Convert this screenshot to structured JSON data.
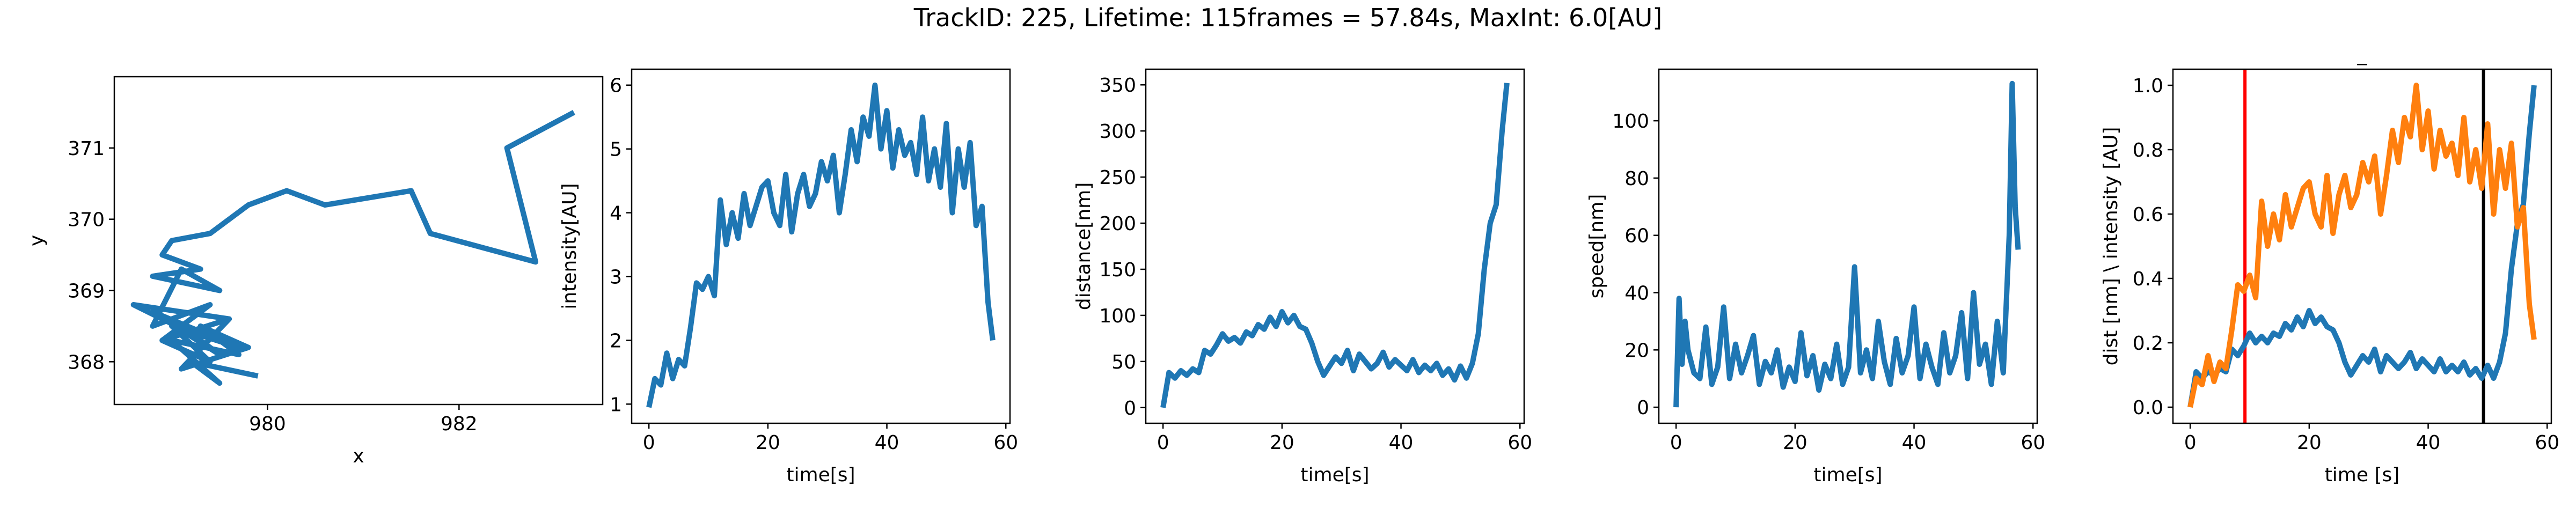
{
  "figure": {
    "suptitle": "TrackID: 225, Lifetime: 115frames = 57.84s, MaxInt: 6.0[AU]"
  },
  "colors": {
    "blue": "#1f77b4",
    "orange": "#ff7f0e",
    "red": "#ff0000",
    "black": "#000000"
  },
  "chart_data": [
    {
      "id": "trajectory",
      "type": "line",
      "title": "",
      "xlabel": "x",
      "ylabel": "y",
      "xlim": [
        978.4,
        983.5
      ],
      "ylim": [
        367.4,
        372.0
      ],
      "xticks": [
        980,
        982
      ],
      "yticks": [
        368,
        369,
        370,
        371
      ],
      "grid": false,
      "series": [
        {
          "color": "blue",
          "x": [
            983.2,
            982.5,
            982.8,
            981.7,
            981.5,
            980.6,
            980.2,
            979.8,
            979.4,
            979.0,
            978.9,
            979.3,
            978.8,
            979.5,
            979.1,
            978.8,
            979.4,
            978.9,
            979.6,
            978.6,
            979.2,
            979.5,
            978.8,
            979.7,
            979.0,
            979.4,
            978.9,
            979.6,
            979.1,
            979.8,
            979.3,
            979.7,
            979.0,
            979.5,
            979.2,
            979.9
          ],
          "y": [
            371.5,
            371.0,
            369.4,
            369.8,
            370.4,
            370.2,
            370.4,
            370.2,
            369.8,
            369.7,
            369.5,
            369.3,
            369.2,
            369.0,
            369.3,
            368.5,
            368.8,
            368.3,
            368.6,
            368.8,
            368.4,
            368.1,
            368.7,
            368.2,
            368.5,
            368.0,
            368.3,
            368.6,
            367.9,
            368.2,
            368.5,
            368.1,
            368.3,
            367.7,
            368.0,
            367.8
          ]
        }
      ]
    },
    {
      "id": "intensity",
      "type": "line",
      "title": "",
      "xlabel": "time[s]",
      "ylabel": "intensity[AU]",
      "xlim": [
        -2.9,
        60.7
      ],
      "ylim": [
        0.7,
        6.25
      ],
      "xticks": [
        0,
        20,
        40,
        60
      ],
      "yticks": [
        1,
        2,
        3,
        4,
        5,
        6
      ],
      "grid": false,
      "series": [
        {
          "color": "blue",
          "x": [
            0,
            1,
            2,
            3,
            4,
            5,
            6,
            7,
            8,
            9,
            10,
            11,
            12,
            13,
            14,
            15,
            16,
            17,
            18,
            19,
            20,
            21,
            22,
            23,
            24,
            25,
            26,
            27,
            28,
            29,
            30,
            31,
            32,
            33,
            34,
            35,
            36,
            37,
            38,
            39,
            40,
            41,
            42,
            43,
            44,
            45,
            46,
            47,
            48,
            49,
            50,
            51,
            52,
            53,
            54,
            55,
            56,
            57,
            57.8
          ],
          "y": [
            0.95,
            1.4,
            1.3,
            1.8,
            1.4,
            1.7,
            1.6,
            2.2,
            2.9,
            2.8,
            3.0,
            2.7,
            4.2,
            3.5,
            4.0,
            3.6,
            4.3,
            3.8,
            4.1,
            4.4,
            4.5,
            4.0,
            3.8,
            4.6,
            3.7,
            4.3,
            4.6,
            4.1,
            4.3,
            4.8,
            4.5,
            4.9,
            4.0,
            4.6,
            5.3,
            4.8,
            5.5,
            5.2,
            6.0,
            5.0,
            5.6,
            4.7,
            5.3,
            4.9,
            5.1,
            4.6,
            5.5,
            4.5,
            5.0,
            4.4,
            5.4,
            4.0,
            5.0,
            4.4,
            5.1,
            3.8,
            4.1,
            2.6,
            2.0
          ]
        }
      ]
    },
    {
      "id": "distance",
      "type": "line",
      "title": "",
      "xlabel": "time[s]",
      "ylabel": "distance[nm]",
      "xlim": [
        -2.9,
        60.7
      ],
      "ylim": [
        -17,
        367
      ],
      "xticks": [
        0,
        20,
        40,
        60
      ],
      "yticks": [
        0,
        50,
        100,
        150,
        200,
        250,
        300,
        350
      ],
      "grid": false,
      "series": [
        {
          "color": "blue",
          "x": [
            0,
            1,
            2,
            3,
            4,
            5,
            6,
            7,
            8,
            9,
            10,
            11,
            12,
            13,
            14,
            15,
            16,
            17,
            18,
            19,
            20,
            21,
            22,
            23,
            24,
            25,
            26,
            27,
            28,
            29,
            30,
            31,
            32,
            33,
            34,
            35,
            36,
            37,
            38,
            39,
            40,
            41,
            42,
            43,
            44,
            45,
            46,
            47,
            48,
            49,
            50,
            51,
            52,
            53,
            54,
            55,
            56,
            57,
            57.8
          ],
          "y": [
            0,
            38,
            32,
            40,
            35,
            42,
            38,
            62,
            58,
            68,
            80,
            72,
            76,
            70,
            82,
            78,
            90,
            85,
            98,
            88,
            104,
            92,
            100,
            88,
            85,
            70,
            50,
            35,
            45,
            55,
            48,
            62,
            40,
            58,
            50,
            42,
            48,
            60,
            44,
            52,
            46,
            40,
            52,
            38,
            46,
            40,
            48,
            35,
            42,
            30,
            45,
            32,
            48,
            80,
            150,
            200,
            220,
            300,
            352
          ]
        }
      ]
    },
    {
      "id": "speed",
      "type": "line",
      "title": "",
      "xlabel": "time[s]",
      "ylabel": "speed[nm]",
      "xlim": [
        -2.9,
        60.7
      ],
      "ylim": [
        -5.6,
        118
      ],
      "xticks": [
        0,
        20,
        40,
        60
      ],
      "yticks": [
        0,
        20,
        40,
        60,
        80,
        100
      ],
      "grid": false,
      "series": [
        {
          "color": "blue",
          "x": [
            0,
            0.5,
            1,
            1.5,
            2,
            3,
            4,
            5,
            6,
            7,
            8,
            9,
            10,
            11,
            12,
            13,
            14,
            15,
            16,
            17,
            18,
            19,
            20,
            21,
            22,
            23,
            24,
            25,
            26,
            27,
            28,
            29,
            30,
            31,
            32,
            33,
            34,
            35,
            36,
            37,
            38,
            39,
            40,
            41,
            42,
            43,
            44,
            45,
            46,
            47,
            48,
            49,
            50,
            51,
            52,
            53,
            54,
            55,
            56,
            56.5,
            57,
            57.5
          ],
          "y": [
            0,
            38,
            15,
            30,
            20,
            12,
            10,
            28,
            8,
            14,
            35,
            10,
            22,
            12,
            18,
            25,
            8,
            16,
            12,
            20,
            7,
            14,
            9,
            26,
            11,
            18,
            6,
            15,
            10,
            22,
            8,
            14,
            49,
            12,
            20,
            10,
            30,
            16,
            8,
            24,
            12,
            18,
            35,
            10,
            22,
            14,
            8,
            26,
            12,
            18,
            33,
            10,
            40,
            15,
            22,
            8,
            30,
            12,
            60,
            113,
            70,
            55
          ]
        }
      ]
    },
    {
      "id": "overlay",
      "type": "line",
      "title": "_",
      "xlabel": "time [s]",
      "ylabel": "dist [nm] \\ intensity [AU]",
      "xlim": [
        -2.9,
        60.7
      ],
      "ylim": [
        -0.05,
        1.05
      ],
      "xticks": [
        0,
        20,
        40,
        60
      ],
      "yticks": [
        0.0,
        0.2,
        0.4,
        0.6,
        0.8,
        1.0
      ],
      "grid": false,
      "vlines": [
        {
          "x": 9.2,
          "color": "red"
        },
        {
          "x": 49.3,
          "color": "black"
        }
      ],
      "series": [
        {
          "color": "blue",
          "x": [
            0,
            1,
            2,
            3,
            4,
            5,
            6,
            7,
            8,
            9,
            10,
            11,
            12,
            13,
            14,
            15,
            16,
            17,
            18,
            19,
            20,
            21,
            22,
            23,
            24,
            25,
            26,
            27,
            28,
            29,
            30,
            31,
            32,
            33,
            34,
            35,
            36,
            37,
            38,
            39,
            40,
            41,
            42,
            43,
            44,
            45,
            46,
            47,
            48,
            49,
            50,
            51,
            52,
            53,
            54,
            55,
            56,
            57,
            57.8
          ],
          "y": [
            0.0,
            0.11,
            0.09,
            0.11,
            0.1,
            0.12,
            0.11,
            0.18,
            0.16,
            0.19,
            0.23,
            0.2,
            0.22,
            0.2,
            0.23,
            0.22,
            0.26,
            0.24,
            0.28,
            0.25,
            0.3,
            0.26,
            0.28,
            0.25,
            0.24,
            0.2,
            0.14,
            0.1,
            0.13,
            0.16,
            0.14,
            0.18,
            0.11,
            0.16,
            0.14,
            0.12,
            0.14,
            0.17,
            0.12,
            0.15,
            0.13,
            0.11,
            0.15,
            0.11,
            0.13,
            0.11,
            0.14,
            0.1,
            0.12,
            0.09,
            0.13,
            0.09,
            0.14,
            0.23,
            0.43,
            0.57,
            0.63,
            0.85,
            1.0
          ]
        },
        {
          "color": "orange",
          "x": [
            0,
            1,
            2,
            3,
            4,
            5,
            6,
            7,
            8,
            9,
            10,
            11,
            12,
            13,
            14,
            15,
            16,
            17,
            18,
            19,
            20,
            21,
            22,
            23,
            24,
            25,
            26,
            27,
            28,
            29,
            30,
            31,
            32,
            33,
            34,
            35,
            36,
            37,
            38,
            39,
            40,
            41,
            42,
            43,
            44,
            45,
            46,
            47,
            48,
            49,
            50,
            51,
            52,
            53,
            54,
            55,
            56,
            57,
            57.8
          ],
          "y": [
            0.0,
            0.09,
            0.07,
            0.16,
            0.08,
            0.14,
            0.12,
            0.24,
            0.38,
            0.36,
            0.41,
            0.34,
            0.64,
            0.5,
            0.6,
            0.52,
            0.66,
            0.56,
            0.62,
            0.68,
            0.7,
            0.6,
            0.56,
            0.72,
            0.54,
            0.66,
            0.72,
            0.62,
            0.66,
            0.76,
            0.7,
            0.78,
            0.6,
            0.72,
            0.86,
            0.76,
            0.9,
            0.84,
            1.0,
            0.8,
            0.92,
            0.74,
            0.86,
            0.78,
            0.82,
            0.72,
            0.9,
            0.7,
            0.8,
            0.68,
            0.88,
            0.6,
            0.8,
            0.68,
            0.82,
            0.56,
            0.62,
            0.32,
            0.21
          ]
        }
      ]
    }
  ]
}
